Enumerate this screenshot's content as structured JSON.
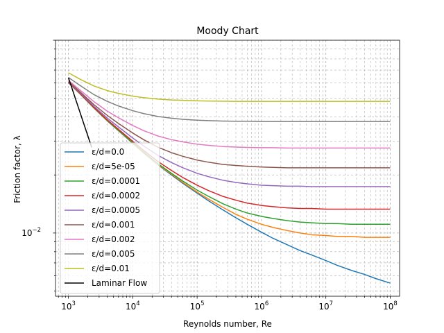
{
  "chart_data": {
    "type": "line",
    "title": "Moody Chart",
    "xlabel": "Reynolds number, Re",
    "ylabel": "Friction factor, λ",
    "x_scale": "log",
    "y_scale": "log",
    "xlim": [
      630,
      140000000
    ],
    "ylim": [
      0.0047,
      0.1
    ],
    "grid": true,
    "legend_position": "lower-left",
    "x_ticks": [
      {
        "value": 1000,
        "base": "10",
        "exp": "3"
      },
      {
        "value": 10000,
        "base": "10",
        "exp": "4"
      },
      {
        "value": 100000,
        "base": "10",
        "exp": "5"
      },
      {
        "value": 1000000,
        "base": "10",
        "exp": "6"
      },
      {
        "value": 10000000,
        "base": "10",
        "exp": "7"
      },
      {
        "value": 100000000,
        "base": "10",
        "exp": "8"
      }
    ],
    "y_ticks": [
      {
        "value": 0.01,
        "base": "10",
        "exp": "−2"
      }
    ],
    "x": [
      1000,
      1500,
      2500,
      4000,
      6000,
      10000,
      15000,
      25000,
      40000,
      60000,
      100000,
      150000,
      250000,
      400000,
      600000,
      1000000,
      1500000,
      2500000,
      4000000,
      6000000,
      10000000,
      15000000,
      25000000,
      40000000,
      60000000,
      100000000
    ],
    "series": [
      {
        "name": "ε/d=0.0",
        "color": "#1f77b4",
        "values": [
          0.0602,
          0.0529,
          0.0444,
          0.0382,
          0.0339,
          0.0292,
          0.0259,
          0.0225,
          0.02,
          0.0181,
          0.0161,
          0.0147,
          0.0132,
          0.012,
          0.0111,
          0.0101,
          0.0094,
          0.0087,
          0.0081,
          0.0077,
          0.0072,
          0.0068,
          0.0064,
          0.0061,
          0.0058,
          0.0055
        ]
      },
      {
        "name": "ε/d=5e-05",
        "color": "#ff7f0e",
        "values": [
          0.0602,
          0.0529,
          0.0445,
          0.0383,
          0.034,
          0.0293,
          0.026,
          0.0226,
          0.0202,
          0.0183,
          0.0163,
          0.015,
          0.0136,
          0.0125,
          0.0118,
          0.0111,
          0.0107,
          0.0103,
          0.01,
          0.0098,
          0.0097,
          0.0096,
          0.0096,
          0.0095,
          0.0095,
          0.0095
        ]
      },
      {
        "name": "ε/d=0.0001",
        "color": "#2ca02c",
        "values": [
          0.0603,
          0.053,
          0.0446,
          0.0384,
          0.0341,
          0.0294,
          0.0262,
          0.0228,
          0.0204,
          0.0186,
          0.0167,
          0.0155,
          0.0142,
          0.0133,
          0.0127,
          0.0122,
          0.0119,
          0.0116,
          0.0114,
          0.0113,
          0.0112,
          0.0112,
          0.0111,
          0.0111,
          0.0111,
          0.0111
        ]
      },
      {
        "name": "ε/d=0.0002",
        "color": "#d62728",
        "values": [
          0.0604,
          0.0532,
          0.0448,
          0.0387,
          0.0345,
          0.0299,
          0.0267,
          0.0234,
          0.0211,
          0.0194,
          0.0177,
          0.0166,
          0.0155,
          0.0148,
          0.0143,
          0.0139,
          0.0137,
          0.0135,
          0.0134,
          0.0134,
          0.0133,
          0.0133,
          0.0133,
          0.0133,
          0.0133,
          0.0133
        ]
      },
      {
        "name": "ε/d=0.0005",
        "color": "#9467bd",
        "values": [
          0.0607,
          0.0536,
          0.0454,
          0.0395,
          0.0355,
          0.0311,
          0.0282,
          0.0252,
          0.0232,
          0.0218,
          0.0204,
          0.0196,
          0.0188,
          0.0183,
          0.018,
          0.0177,
          0.0176,
          0.0175,
          0.0175,
          0.0174,
          0.0174,
          0.0174,
          0.0174,
          0.0174,
          0.0174,
          0.0174
        ]
      },
      {
        "name": "ε/d=0.001",
        "color": "#8c564b",
        "values": [
          0.0611,
          0.0542,
          0.0463,
          0.0408,
          0.037,
          0.033,
          0.0304,
          0.0278,
          0.0261,
          0.025,
          0.0239,
          0.0233,
          0.0227,
          0.0224,
          0.0222,
          0.022,
          0.0219,
          0.0218,
          0.0218,
          0.0218,
          0.0218,
          0.0218,
          0.0218,
          0.0218,
          0.0218,
          0.0218
        ]
      },
      {
        "name": "ε/d=0.002",
        "color": "#e377c2",
        "values": [
          0.0619,
          0.0553,
          0.048,
          0.0429,
          0.0396,
          0.0361,
          0.0339,
          0.0318,
          0.0305,
          0.0297,
          0.0289,
          0.0285,
          0.0281,
          0.0279,
          0.0278,
          0.0277,
          0.0277,
          0.0276,
          0.0276,
          0.0276,
          0.0276,
          0.0276,
          0.0276,
          0.0276,
          0.0276,
          0.0276
        ]
      },
      {
        "name": "ε/d=0.005",
        "color": "#7f7f7f",
        "values": [
          0.0641,
          0.0584,
          0.0522,
          0.0482,
          0.0456,
          0.0431,
          0.0416,
          0.0402,
          0.0394,
          0.0389,
          0.0385,
          0.0383,
          0.0381,
          0.038,
          0.038,
          0.0379,
          0.0379,
          0.0379,
          0.0379,
          0.0379,
          0.0379,
          0.0379,
          0.0379,
          0.0379,
          0.0379,
          0.0379
        ]
      },
      {
        "name": "ε/d=0.01",
        "color": "#bcbd22",
        "values": [
          0.0678,
          0.0629,
          0.0579,
          0.0548,
          0.053,
          0.0513,
          0.0503,
          0.0495,
          0.049,
          0.0488,
          0.0485,
          0.0484,
          0.0483,
          0.0482,
          0.0482,
          0.0482,
          0.0482,
          0.0482,
          0.0482,
          0.0482,
          0.0482,
          0.0482,
          0.0482,
          0.0482,
          0.0482,
          0.0482
        ]
      },
      {
        "name": "Laminar Flow",
        "color": "#000000",
        "x": [
          1000,
          2300
        ],
        "values": [
          0.064,
          0.0278
        ]
      }
    ]
  }
}
